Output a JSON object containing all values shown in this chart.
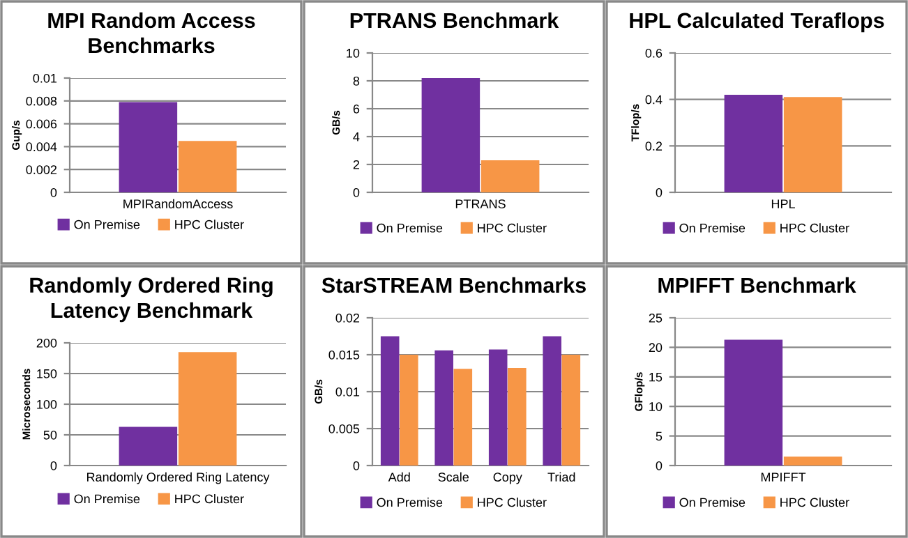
{
  "chart_data": [
    {
      "type": "bar",
      "title": "MPI Random Access Benchmarks",
      "ylabel": "Gup/s",
      "categories": [
        "MPIRandomAccess"
      ],
      "ylim": [
        0,
        0.01
      ],
      "yticks": [
        0,
        0.002,
        0.004,
        0.006,
        0.008,
        0.01
      ],
      "grid": "y",
      "legend": "bottom",
      "series": [
        {
          "name": "On Premise",
          "color": "#7030a0",
          "values": [
            0.0079
          ]
        },
        {
          "name": "HPC Cluster",
          "color": "#f79646",
          "values": [
            0.0045
          ]
        }
      ]
    },
    {
      "type": "bar",
      "title": "PTRANS Benchmark",
      "ylabel": "GB/s",
      "categories": [
        "PTRANS"
      ],
      "ylim": [
        0,
        10
      ],
      "yticks": [
        0,
        2,
        4,
        6,
        8,
        10
      ],
      "grid": "y",
      "legend": "bottom",
      "series": [
        {
          "name": "On Premise",
          "color": "#7030a0",
          "values": [
            8.2
          ]
        },
        {
          "name": "HPC Cluster",
          "color": "#f79646",
          "values": [
            2.3
          ]
        }
      ]
    },
    {
      "type": "bar",
      "title": "HPL Calculated Teraflops",
      "ylabel": "TFlop/s",
      "categories": [
        "HPL"
      ],
      "ylim": [
        0,
        0.6
      ],
      "yticks": [
        0,
        0.2,
        0.4,
        0.6
      ],
      "grid": "y",
      "legend": "bottom",
      "series": [
        {
          "name": "On Premise",
          "color": "#7030a0",
          "values": [
            0.42
          ]
        },
        {
          "name": "HPC Cluster",
          "color": "#f79646",
          "values": [
            0.41
          ]
        }
      ]
    },
    {
      "type": "bar",
      "title": "Randomly Ordered Ring Latency Benchmark",
      "ylabel": "Microseconds",
      "categories": [
        "Randomly Ordered Ring Latency"
      ],
      "ylim": [
        0,
        200
      ],
      "yticks": [
        0,
        50,
        100,
        150,
        200
      ],
      "grid": "y",
      "legend": "bottom",
      "series": [
        {
          "name": "On Premise",
          "color": "#7030a0",
          "values": [
            63
          ]
        },
        {
          "name": "HPC Cluster",
          "color": "#f79646",
          "values": [
            185
          ]
        }
      ]
    },
    {
      "type": "bar",
      "title": "StarSTREAM Benchmarks",
      "ylabel": "GB/s",
      "categories": [
        "Add",
        "Scale",
        "Copy",
        "Triad"
      ],
      "ylim": [
        0,
        0.02
      ],
      "yticks": [
        0,
        0.005,
        0.01,
        0.015,
        0.02
      ],
      "grid": "y",
      "legend": "bottom",
      "series": [
        {
          "name": "On Premise",
          "color": "#7030a0",
          "values": [
            0.0175,
            0.0156,
            0.0157,
            0.0175
          ]
        },
        {
          "name": "HPC Cluster",
          "color": "#f79646",
          "values": [
            0.015,
            0.0131,
            0.0132,
            0.015
          ]
        }
      ]
    },
    {
      "type": "bar",
      "title": "MPIFFT Benchmark",
      "ylabel": "GFlop/s",
      "categories": [
        "MPIFFT"
      ],
      "ylim": [
        0,
        25
      ],
      "yticks": [
        0,
        5,
        10,
        15,
        20,
        25
      ],
      "grid": "y",
      "legend": "bottom",
      "series": [
        {
          "name": "On Premise",
          "color": "#7030a0",
          "values": [
            21.3
          ]
        },
        {
          "name": "HPC Cluster",
          "color": "#f79646",
          "values": [
            1.5
          ]
        }
      ]
    }
  ]
}
